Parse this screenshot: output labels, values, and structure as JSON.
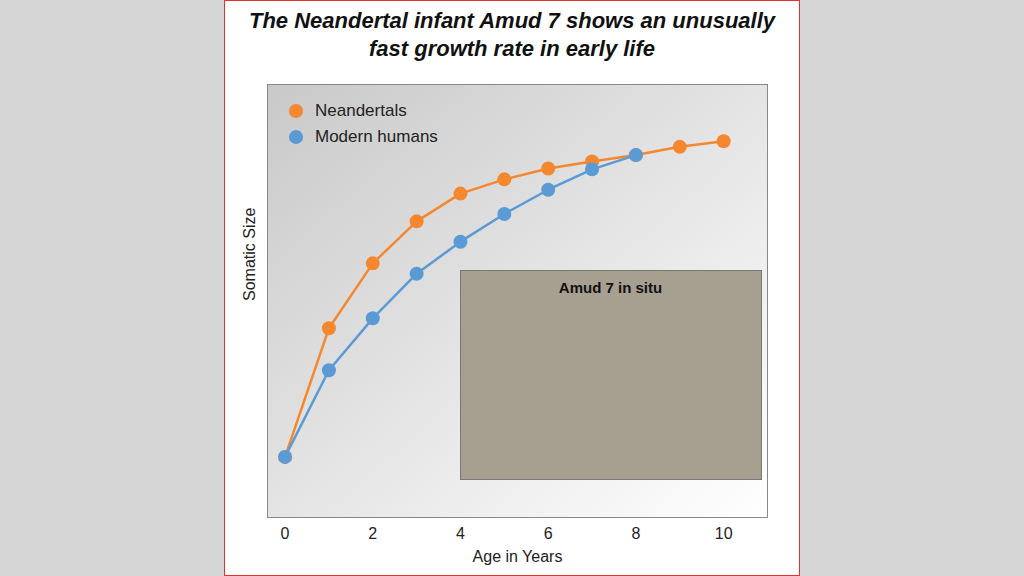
{
  "chart_data": {
    "type": "line",
    "title": "The Neandertal infant Amud 7 shows an unusually fast growth rate in early life",
    "x_label": "Age in Years",
    "y_label": "Somatic Size",
    "annotations": [
      "Amud 7 in situ"
    ],
    "x": [
      0,
      1,
      2,
      3,
      4,
      5,
      6,
      7,
      8,
      9,
      10
    ],
    "series": [
      {
        "name": "Neandertals",
        "color": "#f5872f",
        "marker": "circle",
        "values": [
          14,
          43.7,
          58.7,
          68.4,
          74.8,
          78.1,
          80.6,
          82.2,
          83.7,
          85.6,
          86.9
        ]
      },
      {
        "name": "Modern humans",
        "color": "#5b9bd5",
        "marker": "circle",
        "values": [
          14,
          34,
          46,
          56.3,
          63.7,
          70.1,
          75.7,
          80.4,
          83.7,
          null,
          null
        ]
      }
    ],
    "xlim": [
      -0.4,
      11
    ],
    "xticks": [
      0,
      2,
      4,
      6,
      8,
      10
    ],
    "ylim": [
      0,
      100
    ],
    "yticks": [],
    "tick_labels": "x",
    "legend": "top-left",
    "grid": false
  }
}
